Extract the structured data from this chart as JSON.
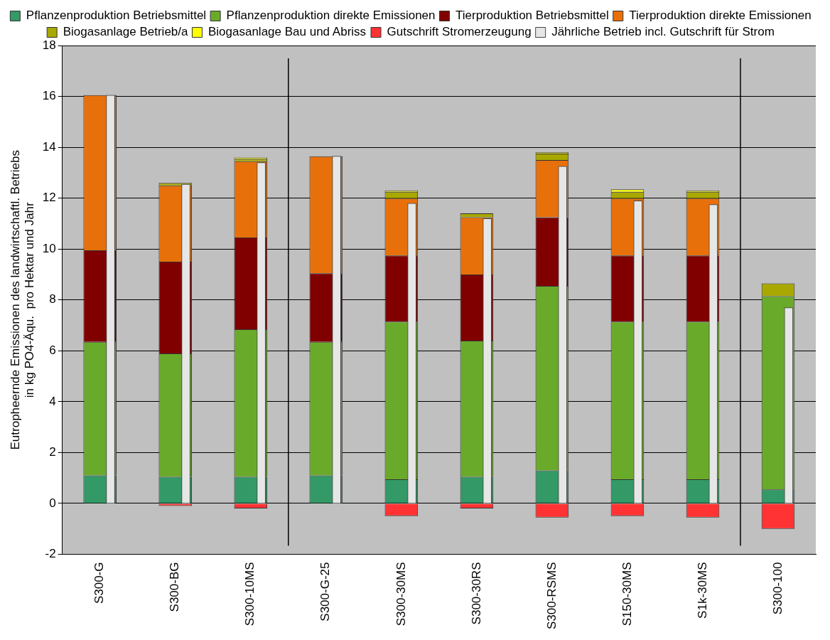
{
  "chart_data": {
    "type": "bar",
    "ylabel": "Eutropheernde Emissionen des landwirtschaftl. Betriebs\nin kg PO4-Äqu.  pro Hektar und Jahr",
    "categories": [
      "S300-G",
      "S300-BG",
      "S300-10MS",
      "S300-G-25",
      "S300-30MS",
      "S300-30RS",
      "S300-RSMS",
      "S150-30MS",
      "S1k-30MS",
      "S300-100"
    ],
    "series": [
      {
        "name": "Pflanzenproduktion Betriebsmittel",
        "color": "#339966",
        "base": [
          0,
          0,
          0,
          0,
          0,
          0,
          0,
          0,
          0,
          0
        ],
        "values": [
          1.1,
          1.05,
          1.05,
          1.1,
          0.95,
          1.05,
          1.3,
          0.95,
          0.95,
          0.55
        ]
      },
      {
        "name": "Pflanzenproduktion direkte Emissionen",
        "color": "#6aaa2a",
        "base": [
          1.1,
          1.05,
          1.05,
          1.1,
          0.95,
          1.05,
          1.3,
          0.95,
          0.95,
          0.55
        ],
        "values": [
          5.25,
          4.85,
          5.8,
          5.25,
          6.2,
          5.35,
          7.25,
          6.2,
          6.2,
          7.6
        ]
      },
      {
        "name": "Tierproduktion Betriebsmittel",
        "color": "#800000",
        "base": [
          6.35,
          5.9,
          6.85,
          6.35,
          7.15,
          6.4,
          8.55,
          7.15,
          7.15,
          null
        ],
        "values": [
          3.6,
          3.6,
          3.6,
          2.7,
          2.6,
          2.6,
          2.7,
          2.6,
          2.6,
          null
        ]
      },
      {
        "name": "Tierproduktion direkte Emissionen",
        "color": "#e8700a",
        "base": [
          9.95,
          9.5,
          10.45,
          9.05,
          9.75,
          9.0,
          11.25,
          9.75,
          9.75,
          null
        ],
        "values": [
          6.1,
          3.0,
          3.0,
          4.6,
          2.25,
          2.25,
          2.25,
          2.25,
          2.25,
          null
        ]
      },
      {
        "name": "Biogasanlage Betrieb/a",
        "color": "#a8a800",
        "base": [
          null,
          12.5,
          13.45,
          null,
          12.0,
          11.25,
          13.5,
          12.0,
          12.0,
          8.15
        ],
        "values": [
          null,
          0.1,
          0.1,
          null,
          0.25,
          0.15,
          0.25,
          0.25,
          0.25,
          0.5
        ]
      },
      {
        "name": "Biogasanlage Bau und Abriss",
        "color": "#ffff00",
        "base": [
          null,
          null,
          13.55,
          null,
          12.25,
          null,
          13.75,
          12.25,
          12.25,
          null
        ],
        "values": [
          null,
          null,
          0.05,
          null,
          0.05,
          null,
          0.05,
          0.1,
          0.05,
          null
        ]
      },
      {
        "name": "Gutschrift Stromerzeugung",
        "color": "#ff3333",
        "base": [
          null,
          0,
          0,
          null,
          0,
          0,
          0,
          0,
          0,
          0
        ],
        "values": [
          null,
          -0.1,
          -0.2,
          null,
          -0.5,
          -0.2,
          -0.55,
          -0.5,
          -0.55,
          -1.0
        ]
      },
      {
        "name": "Jährliche Betrieb incl. Gutschrift für Strom",
        "color": "#e6e6e6",
        "base": [
          0,
          0,
          0,
          0,
          0,
          0,
          0,
          0,
          0,
          0
        ],
        "values": [
          16.05,
          12.55,
          13.4,
          13.65,
          11.8,
          11.2,
          13.25,
          11.9,
          11.75,
          7.7
        ]
      }
    ],
    "ylim": [
      -2,
      18
    ],
    "yticks": [
      -2,
      0,
      2,
      4,
      6,
      8,
      10,
      12,
      14,
      16,
      18
    ],
    "grid": "y",
    "legend": "top"
  }
}
